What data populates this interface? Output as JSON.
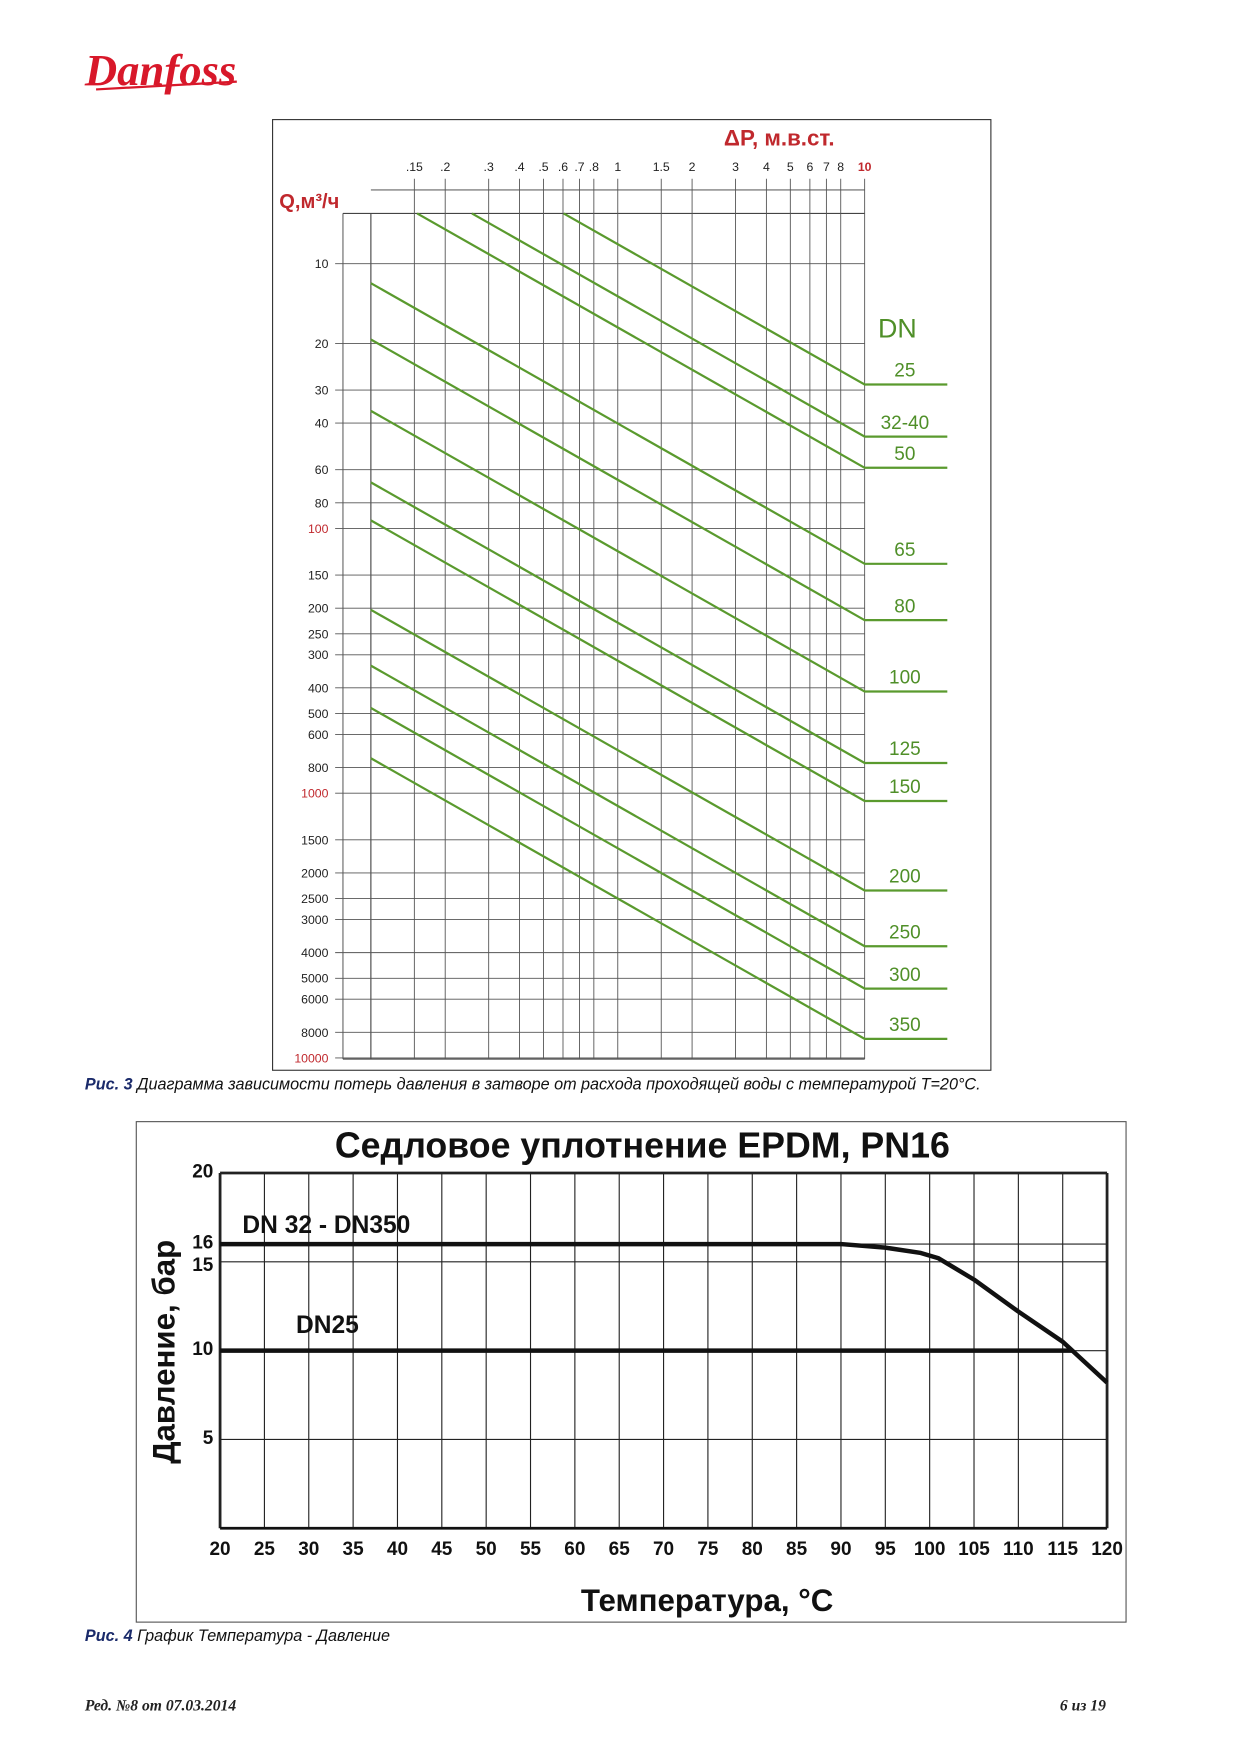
{
  "logo": {
    "text": "Danfoss",
    "color": "#d8182a"
  },
  "figure3": {
    "caption_num": "Рис. 3",
    "caption_text": " Диаграмма зависимости потерь давления в затворе от расхода проходящей воды с температурой T=20°C."
  },
  "figure4": {
    "caption_num": "Рис. 4",
    "caption_text": " График Температура - Давление"
  },
  "footer": {
    "revision": "Ред. №8 от 07.03.2014",
    "page": "6 из 19"
  },
  "chart_data": [
    {
      "type": "line",
      "title": "",
      "xlabel": "ΔP, м.в.ст.",
      "ylabel": "Q,м³/ч",
      "xscale": "log",
      "yscale": "log",
      "xlim": [
        0.1,
        10
      ],
      "ylim": [
        6.45,
        10000
      ],
      "y_inverted": true,
      "x_ticks": [
        ".15",
        ".2",
        ".3",
        ".4",
        ".5",
        ".6",
        ".7",
        ".8",
        "1",
        "1.5",
        "2",
        "3",
        "4",
        "5",
        "6",
        "7",
        "8",
        "10"
      ],
      "x_tick_values": [
        0.15,
        0.2,
        0.3,
        0.4,
        0.5,
        0.6,
        0.7,
        0.8,
        1,
        1.5,
        2,
        3,
        4,
        5,
        6,
        7,
        8,
        10
      ],
      "y_ticks": [
        "10",
        "20",
        "30",
        "40",
        "60",
        "80",
        "100",
        "150",
        "200",
        "250",
        "300",
        "400",
        "500",
        "600",
        "800",
        "1000",
        "1500",
        "2000",
        "2500",
        "3000",
        "4000",
        "5000",
        "6000",
        "8000",
        "10000"
      ],
      "y_tick_values": [
        10,
        20,
        30,
        40,
        60,
        80,
        100,
        150,
        200,
        250,
        300,
        400,
        500,
        600,
        800,
        1000,
        1500,
        2000,
        2500,
        3000,
        4000,
        5000,
        6000,
        8000,
        10000
      ],
      "y_ticks_red": [
        "100",
        "1000",
        "10000"
      ],
      "legend_title": "DN",
      "exponent": 0.53,
      "series": [
        {
          "name": "25",
          "q_at_10": 28.6
        },
        {
          "name": "32-40",
          "q_at_10": 45
        },
        {
          "name": "50",
          "q_at_10": 59
        },
        {
          "name": "65",
          "q_at_10": 136
        },
        {
          "name": "80",
          "q_at_10": 222
        },
        {
          "name": "100",
          "q_at_10": 413
        },
        {
          "name": "125",
          "q_at_10": 769
        },
        {
          "name": "150",
          "q_at_10": 1070
        },
        {
          "name": "200",
          "q_at_10": 2330
        },
        {
          "name": "250",
          "q_at_10": 3785
        },
        {
          "name": "300",
          "q_at_10": 5470
        },
        {
          "name": "350",
          "q_at_10": 8470
        }
      ],
      "colors": {
        "line": "#5a9a2e",
        "label": "#4f8f28",
        "axis_title": "#c0282d"
      }
    },
    {
      "type": "line",
      "title": "Седловое уплотнение EPDM, PN16",
      "xlabel": "Температура, °C",
      "ylabel": "Давление, бар",
      "xlim": [
        20,
        120
      ],
      "ylim": [
        0,
        20
      ],
      "x_ticks": [
        "20",
        "25",
        "30",
        "35",
        "40",
        "45",
        "50",
        "55",
        "60",
        "65",
        "70",
        "75",
        "80",
        "85",
        "90",
        "95",
        "100",
        "105",
        "110",
        "115",
        "120"
      ],
      "y_ticks": [
        "20",
        "16",
        "15",
        "10",
        "5"
      ],
      "grid": true,
      "series": [
        {
          "name": "DN 32 - DN350",
          "x": [
            20,
            90,
            95,
            99,
            101,
            105,
            110,
            115,
            120
          ],
          "y": [
            16,
            16,
            15.8,
            15.5,
            15.2,
            14.0,
            12.2,
            10.5,
            8.2
          ]
        },
        {
          "name": "DN25",
          "x": [
            20,
            116
          ],
          "y": [
            10,
            10
          ]
        }
      ]
    }
  ]
}
